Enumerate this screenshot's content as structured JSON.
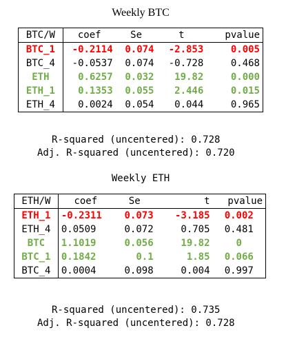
{
  "block1": {
    "title": "Weekly BTC",
    "headers": [
      "BTC/W",
      "coef",
      "Se",
      "t",
      "pvalue"
    ],
    "rows": [
      {
        "name": "BTC_1",
        "coef": "-0.2114",
        "se": "0.074",
        "t": "-2.853",
        "p": "0.005",
        "style": "red"
      },
      {
        "name": "BTC_4",
        "coef": "-0.0537",
        "se": "0.074",
        "t": "-0.728",
        "p": "0.468",
        "style": "plain"
      },
      {
        "name": "ETH",
        "coef": "0.6257",
        "se": "0.032",
        "t": "19.82",
        "p": "0.000",
        "style": "green"
      },
      {
        "name": "ETH_1",
        "coef": "0.1353",
        "se": "0.055",
        "t": "2.446",
        "p": "0.015",
        "style": "green"
      },
      {
        "name": "ETH_4",
        "coef": "0.0024",
        "se": "0.054",
        "t": "0.044",
        "p": "0.965",
        "style": "plain"
      }
    ],
    "r_squared": "R-squared (uncentered): 0.728",
    "adj_r_squared": "Adj. R-squared (uncentered): 0.720"
  },
  "block2": {
    "title": "Weekly ETH",
    "headers": [
      "ETH/W",
      "coef",
      "Se",
      "t",
      "pvalue"
    ],
    "rows": [
      {
        "name": "ETH_1",
        "coef": "-0.2311",
        "se": "0.073",
        "t": "-3.185",
        "p": "0.002",
        "style": "red"
      },
      {
        "name": "ETH_4",
        "coef": "0.0509",
        "se": "0.072",
        "t": "0.705",
        "p": "0.481",
        "style": "plain"
      },
      {
        "name": "BTC",
        "coef": "1.1019",
        "se": "0.056",
        "t": "19.82",
        "p": "0",
        "style": "green"
      },
      {
        "name": "BTC_1",
        "coef": "0.1842",
        "se": "0.1",
        "t": "1.85",
        "p": "0.066",
        "style": "green"
      },
      {
        "name": "BTC_4",
        "coef": "0.0004",
        "se": "0.098",
        "t": "0.004",
        "p": "0.997",
        "style": "plain"
      }
    ],
    "r_squared": "R-squared (uncentered): 0.735",
    "adj_r_squared": "Adj. R-squared (uncentered): 0.728"
  },
  "colors": {
    "significant_negative": "#ff0000",
    "significant_positive": "#70ad47",
    "text": "#000000",
    "background": "#ffffff"
  }
}
